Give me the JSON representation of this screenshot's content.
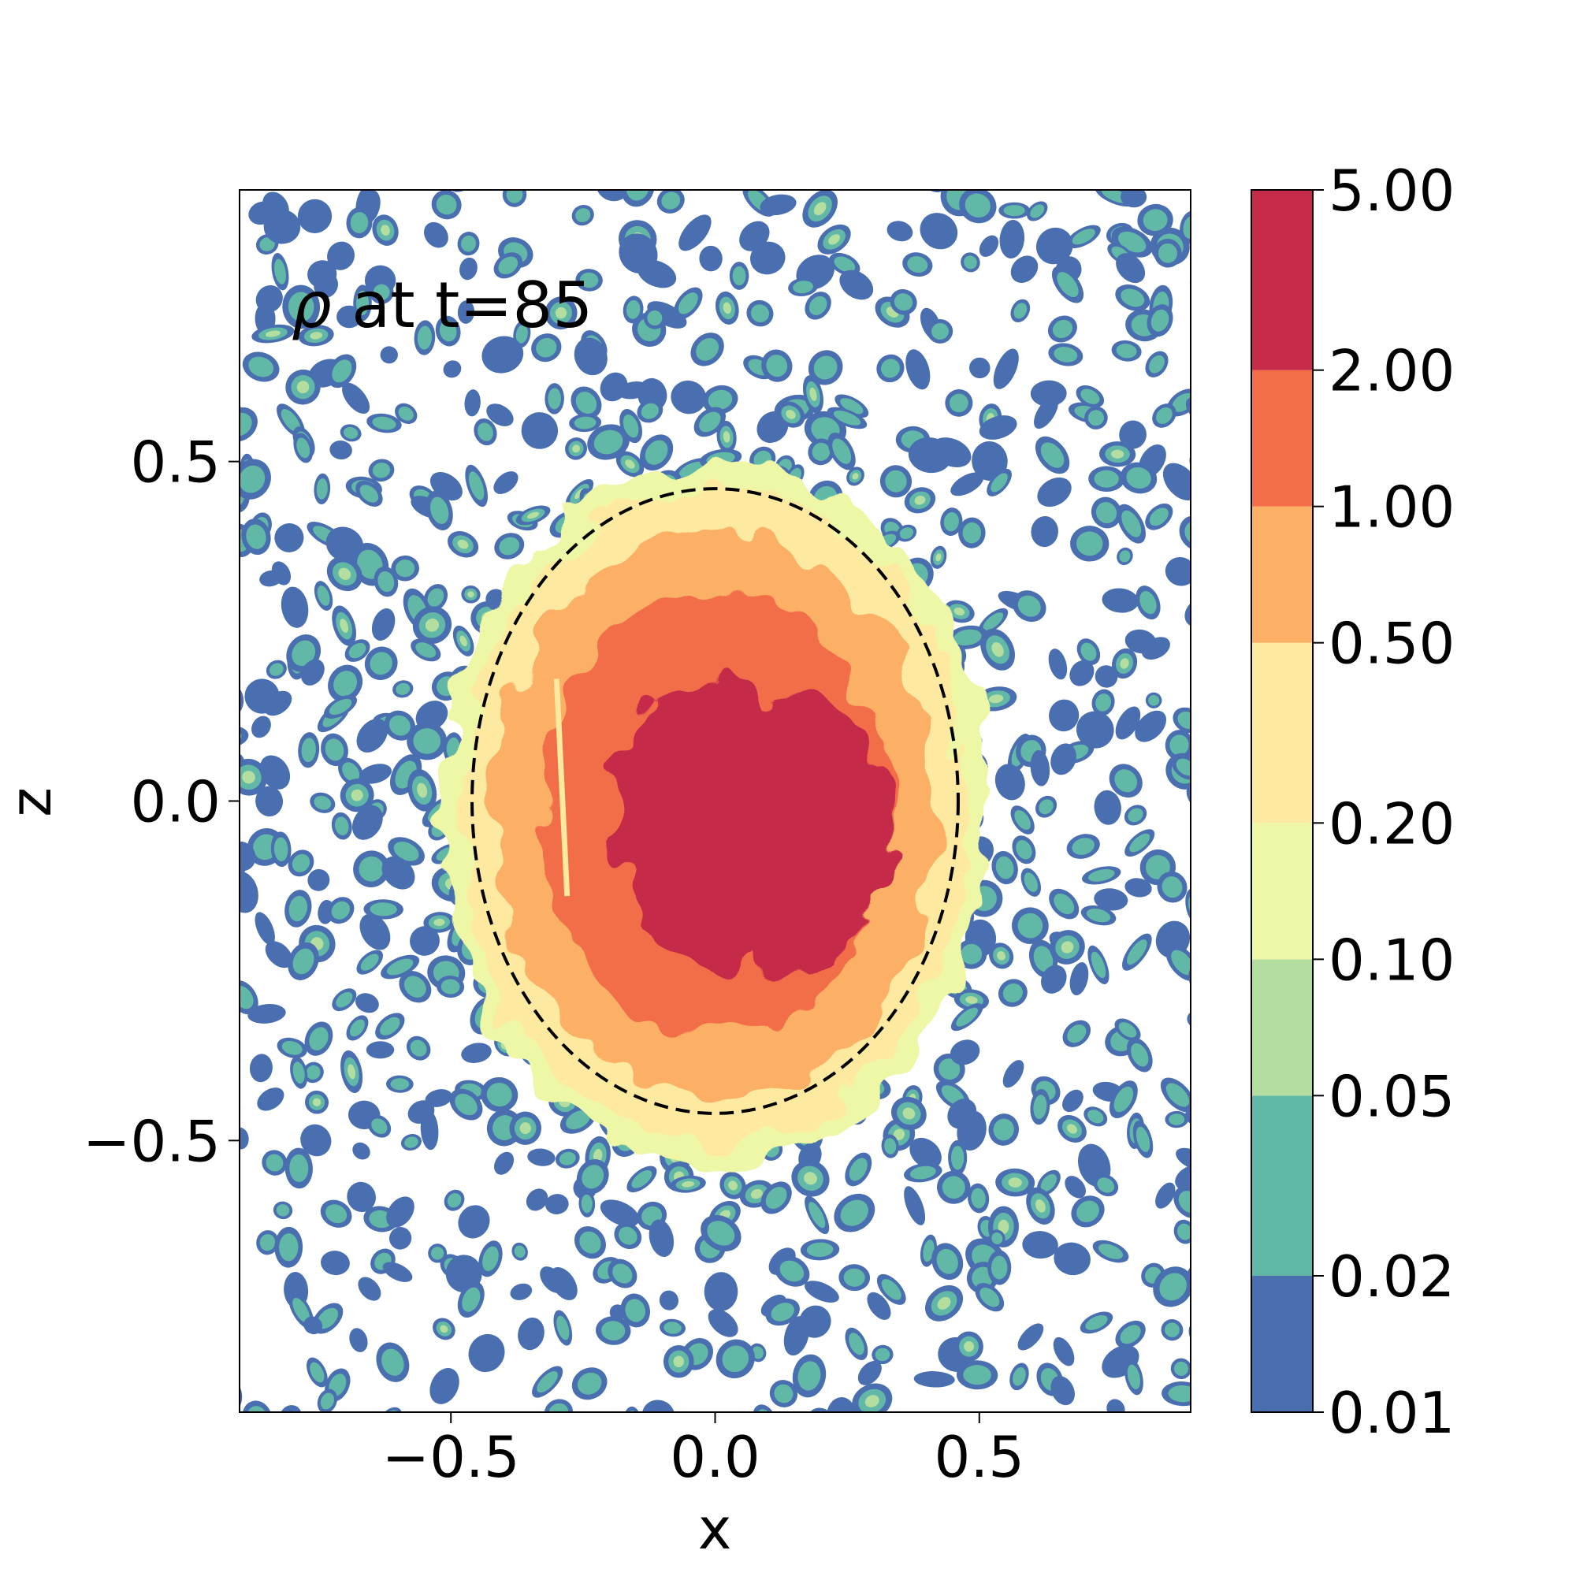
{
  "chart_data": {
    "type": "heatmap",
    "subtype": "filled contour map",
    "title": "ρ at t=85",
    "title_parts": {
      "symbol": "ρ",
      "rest": " at t=85"
    },
    "xlabel": "x",
    "ylabel": "z",
    "xlim": [
      -0.9,
      0.9
    ],
    "ylim": [
      -0.9,
      0.9
    ],
    "xticks": [
      {
        "value": -0.5,
        "label": "−0.5"
      },
      {
        "value": 0.0,
        "label": "0.0"
      },
      {
        "value": 0.5,
        "label": "0.5"
      }
    ],
    "yticks": [
      {
        "value": 0.5,
        "label": "0.5"
      },
      {
        "value": 0.0,
        "label": "0.0"
      },
      {
        "value": -0.5,
        "label": "−0.5"
      }
    ],
    "contour_levels": [
      0.01,
      0.02,
      0.05,
      0.1,
      0.2,
      0.5,
      1.0,
      2.0,
      5.0
    ],
    "colorbar": {
      "tick_labels": [
        "0.01",
        "0.02",
        "0.05",
        "0.10",
        "0.20",
        "0.50",
        "1.00",
        "2.00",
        "5.00"
      ],
      "band_colors": [
        "#4a6fb0",
        "#62b8a6",
        "#b4dea0",
        "#eef7a6",
        "#fde9a0",
        "#fcb066",
        "#f26e48",
        "#c62b4a"
      ]
    },
    "reference_circle": {
      "center": [
        0.0,
        0.0
      ],
      "radius": 0.46,
      "style": "dashed",
      "color": "#000000"
    },
    "structure": {
      "core": {
        "center": [
          0.05,
          -0.05
        ],
        "radius": 0.24,
        "level_min": 2.0
      },
      "shell_1": {
        "radius": 0.33,
        "level_min": 1.0
      },
      "shell_2": {
        "radius": 0.42,
        "level_min": 0.5
      },
      "shell_3": {
        "radius": 0.48,
        "level_min": 0.2
      },
      "background": "noisy speckle, values 0.01–0.1"
    }
  }
}
